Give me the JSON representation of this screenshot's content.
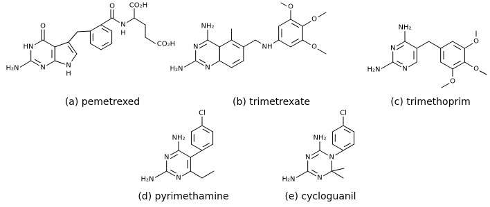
{
  "molecules": [
    {
      "caption": "(a) pemetrexed",
      "atoms": [
        "O",
        "HN",
        "H₂N",
        "N",
        "N",
        "H",
        "O",
        "N",
        "H",
        "CO₂H",
        "CO₂H"
      ]
    },
    {
      "caption": "(b) trimetrexate",
      "atoms": [
        "NH₂",
        "N",
        "H₂N",
        "N",
        "NH",
        "O",
        "O",
        "O"
      ]
    },
    {
      "caption": "(c) trimethoprim",
      "atoms": [
        "NH₂",
        "N",
        "H₂N",
        "N",
        "O",
        "O",
        "O"
      ]
    },
    {
      "caption": "(d) pyrimethamine",
      "atoms": [
        "NH₂",
        "N",
        "H₂N",
        "N",
        "Cl"
      ]
    },
    {
      "caption": "(e) cycloguanil",
      "atoms": [
        "NH₂",
        "N",
        "H₂N",
        "N",
        "N",
        "Cl"
      ]
    }
  ]
}
